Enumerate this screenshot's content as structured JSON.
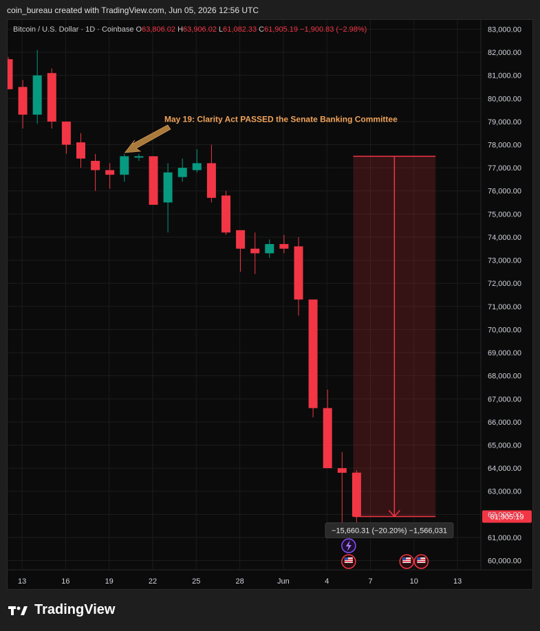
{
  "header": {
    "credit": "coin_bureau created with TradingView.com, Jun 05, 2026 12:56 UTC"
  },
  "legend": {
    "symbol": "Bitcoin / U.S. Dollar · 1D · Coinbase",
    "o_label": "O",
    "o_value": "63,806.02",
    "h_label": "H",
    "h_value": "63,906.02",
    "l_label": "L",
    "l_value": "61,082.33",
    "c_label": "C",
    "c_value": "61,905.19",
    "change": "−1,900.83 (−2.98%)"
  },
  "brand": {
    "name": "TradingView",
    "logo_icon": "tradingview-logo-icon"
  },
  "colors": {
    "up": "#089981",
    "down": "#f23645",
    "bg": "#0b0b0b",
    "grid": "#1c1c1c",
    "annotation": "#f0a35a"
  },
  "chart_data": {
    "type": "candlestick",
    "y_ticks": [
      "83,000.00",
      "82,000.00",
      "81,000.00",
      "80,000.00",
      "79,000.00",
      "78,000.00",
      "77,000.00",
      "76,000.00",
      "75,000.00",
      "74,000.00",
      "73,000.00",
      "72,000.00",
      "71,000.00",
      "70,000.00",
      "69,000.00",
      "68,000.00",
      "67,000.00",
      "66,000.00",
      "65,000.00",
      "64,000.00",
      "63,000.00",
      "62,000.00",
      "61,000.00",
      "60,000.00"
    ],
    "y_tick_values": [
      83000,
      82000,
      81000,
      80000,
      79000,
      78000,
      77000,
      76000,
      75000,
      74000,
      73000,
      72000,
      71000,
      70000,
      69000,
      68000,
      67000,
      66000,
      65000,
      64000,
      63000,
      62000,
      61000,
      60000
    ],
    "x_ticks": [
      "13",
      "16",
      "19",
      "22",
      "25",
      "28",
      "Jun",
      "4",
      "7",
      "10",
      "13"
    ],
    "x_tick_index": [
      1,
      4,
      7,
      10,
      13,
      16,
      19,
      22,
      25,
      28,
      31
    ],
    "ylim": [
      59600,
      83400
    ],
    "candles": [
      {
        "o": 81700,
        "h": 81800,
        "l": 80400,
        "c": 80400
      },
      {
        "o": 80500,
        "h": 80800,
        "l": 78700,
        "c": 79300
      },
      {
        "o": 79300,
        "h": 82100,
        "l": 78900,
        "c": 81000
      },
      {
        "o": 81100,
        "h": 81300,
        "l": 78700,
        "c": 79000
      },
      {
        "o": 79000,
        "h": 79000,
        "l": 77600,
        "c": 78000
      },
      {
        "o": 78100,
        "h": 78500,
        "l": 77000,
        "c": 77400
      },
      {
        "o": 77300,
        "h": 77600,
        "l": 76000,
        "c": 76900
      },
      {
        "o": 76900,
        "h": 77200,
        "l": 76100,
        "c": 76700
      },
      {
        "o": 76700,
        "h": 77600,
        "l": 76400,
        "c": 77500
      },
      {
        "o": 77500,
        "h": 77600,
        "l": 77300,
        "c": 77500
      },
      {
        "o": 77500,
        "h": 77500,
        "l": 75400,
        "c": 75400
      },
      {
        "o": 75500,
        "h": 77200,
        "l": 74200,
        "c": 76800
      },
      {
        "o": 76600,
        "h": 77400,
        "l": 76400,
        "c": 77000
      },
      {
        "o": 76900,
        "h": 77800,
        "l": 76800,
        "c": 77200
      },
      {
        "o": 77200,
        "h": 78000,
        "l": 75500,
        "c": 75700
      },
      {
        "o": 75800,
        "h": 76000,
        "l": 74100,
        "c": 74200
      },
      {
        "o": 74300,
        "h": 74300,
        "l": 72500,
        "c": 73500
      },
      {
        "o": 73500,
        "h": 74200,
        "l": 72400,
        "c": 73300
      },
      {
        "o": 73300,
        "h": 73900,
        "l": 73100,
        "c": 73700
      },
      {
        "o": 73700,
        "h": 74100,
        "l": 73300,
        "c": 73500
      },
      {
        "o": 73600,
        "h": 74000,
        "l": 70600,
        "c": 71300
      },
      {
        "o": 71300,
        "h": 71300,
        "l": 66200,
        "c": 66600
      },
      {
        "o": 66600,
        "h": 67400,
        "l": 64000,
        "c": 64000
      },
      {
        "o": 64000,
        "h": 64700,
        "l": 61300,
        "c": 63800
      },
      {
        "o": 63806,
        "h": 63906,
        "l": 61082,
        "c": 61905
      }
    ],
    "price_label": "61,905.19",
    "price_value": 61905.19,
    "annotation": {
      "text": "May 19: Clarity Act PASSED the Senate Banking Committee",
      "candle_index": 8
    },
    "measure": {
      "top": 77500,
      "bottom": 61905,
      "start_index": 24.1,
      "end_index": 29.2,
      "label": "−15,660.31 (−20.20%) −1,566,031"
    },
    "events": [
      {
        "type": "flash",
        "index": 23.5,
        "icon": "lightning-icon"
      },
      {
        "type": "us-flag",
        "index": 23.5,
        "icon": "us-flag-icon"
      },
      {
        "type": "us-flag",
        "index": 27.5,
        "icon": "us-flag-icon"
      },
      {
        "type": "us-flag",
        "index": 28.5,
        "icon": "us-flag-icon"
      }
    ]
  }
}
